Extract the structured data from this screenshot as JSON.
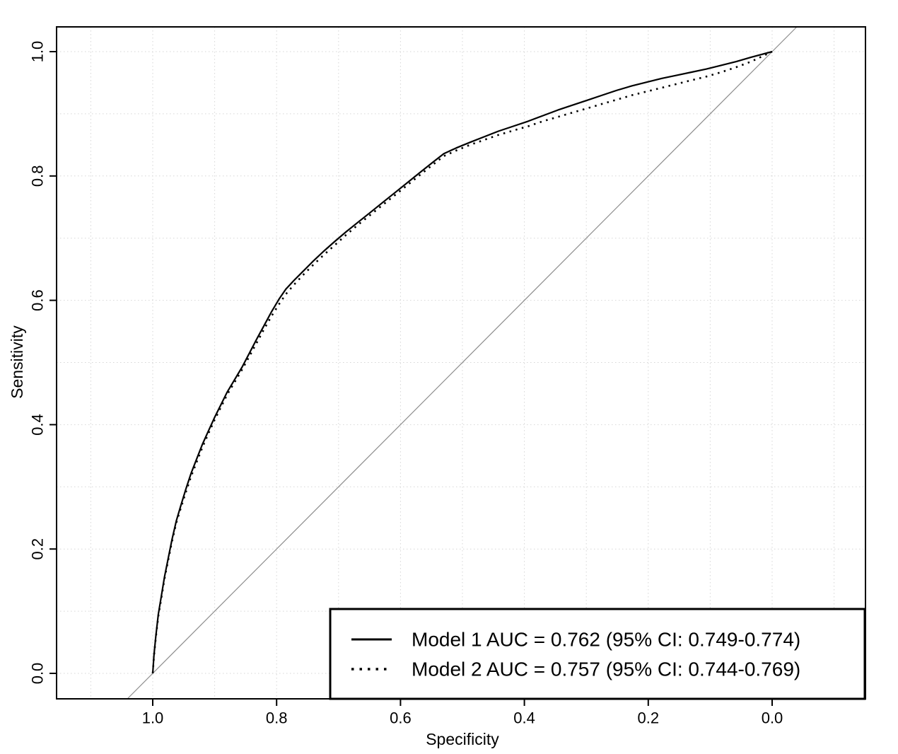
{
  "figure": {
    "background": "#ffffff"
  },
  "chart_data": {
    "type": "line",
    "subtype": "roc-curve",
    "title": "",
    "xlabel": "Specificity",
    "ylabel": "Sensitivity",
    "xlim": [
      1.0,
      0.0
    ],
    "ylim": [
      0.0,
      1.0
    ],
    "x_ticks": [
      "1.0",
      "0.8",
      "0.6",
      "0.4",
      "0.2",
      "0.0"
    ],
    "x_tick_values": [
      1.0,
      0.8,
      0.6,
      0.4,
      0.2,
      0.0
    ],
    "y_ticks": [
      "0.0",
      "0.2",
      "0.4",
      "0.6",
      "0.8",
      "1.0"
    ],
    "y_tick_values": [
      0.0,
      0.2,
      0.4,
      0.6,
      0.8,
      1.0
    ],
    "grid": true,
    "grid_step": 0.1,
    "grid_color": "#d6d6d6",
    "reference_line": {
      "type": "diagonal",
      "from": [
        1,
        0
      ],
      "to": [
        0,
        1
      ],
      "color": "#8c8c8c"
    },
    "legend": {
      "position": "bottom-right",
      "border": true,
      "border_color": "#000000",
      "background": "#ffffff"
    },
    "series": [
      {
        "name": "Model 1",
        "auc": "0.762",
        "ci": "0.749-0.774",
        "legend_label": "Model 1 AUC = 0.762 (95% CI: 0.749-0.774)",
        "line_style": "solid",
        "color": "#000000",
        "points": [
          [
            1.0,
            0.0
          ],
          [
            0.998,
            0.03
          ],
          [
            0.995,
            0.06
          ],
          [
            0.991,
            0.095
          ],
          [
            0.986,
            0.125
          ],
          [
            0.981,
            0.155
          ],
          [
            0.975,
            0.185
          ],
          [
            0.969,
            0.215
          ],
          [
            0.962,
            0.245
          ],
          [
            0.954,
            0.272
          ],
          [
            0.946,
            0.298
          ],
          [
            0.938,
            0.322
          ],
          [
            0.929,
            0.345
          ],
          [
            0.92,
            0.368
          ],
          [
            0.91,
            0.39
          ],
          [
            0.9,
            0.412
          ],
          [
            0.89,
            0.432
          ],
          [
            0.88,
            0.452
          ],
          [
            0.868,
            0.472
          ],
          [
            0.856,
            0.492
          ],
          [
            0.844,
            0.515
          ],
          [
            0.832,
            0.538
          ],
          [
            0.82,
            0.56
          ],
          [
            0.808,
            0.582
          ],
          [
            0.796,
            0.602
          ],
          [
            0.785,
            0.618
          ],
          [
            0.772,
            0.632
          ],
          [
            0.758,
            0.646
          ],
          [
            0.742,
            0.662
          ],
          [
            0.725,
            0.678
          ],
          [
            0.707,
            0.694
          ],
          [
            0.688,
            0.71
          ],
          [
            0.668,
            0.726
          ],
          [
            0.648,
            0.742
          ],
          [
            0.628,
            0.758
          ],
          [
            0.608,
            0.774
          ],
          [
            0.588,
            0.79
          ],
          [
            0.568,
            0.806
          ],
          [
            0.548,
            0.822
          ],
          [
            0.53,
            0.836
          ],
          [
            0.51,
            0.845
          ],
          [
            0.488,
            0.854
          ],
          [
            0.465,
            0.863
          ],
          [
            0.442,
            0.872
          ],
          [
            0.418,
            0.88
          ],
          [
            0.394,
            0.888
          ],
          [
            0.37,
            0.897
          ],
          [
            0.346,
            0.906
          ],
          [
            0.322,
            0.914
          ],
          [
            0.298,
            0.922
          ],
          [
            0.274,
            0.93
          ],
          [
            0.25,
            0.938
          ],
          [
            0.226,
            0.945
          ],
          [
            0.202,
            0.951
          ],
          [
            0.178,
            0.957
          ],
          [
            0.154,
            0.962
          ],
          [
            0.13,
            0.967
          ],
          [
            0.106,
            0.972
          ],
          [
            0.082,
            0.978
          ],
          [
            0.058,
            0.984
          ],
          [
            0.034,
            0.991
          ],
          [
            0.0,
            1.0
          ]
        ]
      },
      {
        "name": "Model 2",
        "auc": "0.757",
        "ci": "0.744-0.769",
        "legend_label": "Model 2 AUC = 0.757 (95% CI: 0.744-0.769)",
        "line_style": "dotted",
        "color": "#000000",
        "points": [
          [
            1.0,
            0.0
          ],
          [
            0.998,
            0.028
          ],
          [
            0.995,
            0.058
          ],
          [
            0.991,
            0.092
          ],
          [
            0.986,
            0.122
          ],
          [
            0.981,
            0.152
          ],
          [
            0.975,
            0.182
          ],
          [
            0.969,
            0.212
          ],
          [
            0.962,
            0.242
          ],
          [
            0.954,
            0.268
          ],
          [
            0.946,
            0.293
          ],
          [
            0.938,
            0.317
          ],
          [
            0.929,
            0.34
          ],
          [
            0.92,
            0.363
          ],
          [
            0.91,
            0.386
          ],
          [
            0.9,
            0.408
          ],
          [
            0.89,
            0.428
          ],
          [
            0.88,
            0.448
          ],
          [
            0.868,
            0.468
          ],
          [
            0.856,
            0.488
          ],
          [
            0.844,
            0.51
          ],
          [
            0.832,
            0.532
          ],
          [
            0.82,
            0.554
          ],
          [
            0.808,
            0.575
          ],
          [
            0.796,
            0.594
          ],
          [
            0.785,
            0.61
          ],
          [
            0.772,
            0.625
          ],
          [
            0.758,
            0.64
          ],
          [
            0.742,
            0.656
          ],
          [
            0.725,
            0.672
          ],
          [
            0.707,
            0.688
          ],
          [
            0.688,
            0.705
          ],
          [
            0.668,
            0.722
          ],
          [
            0.648,
            0.738
          ],
          [
            0.628,
            0.754
          ],
          [
            0.608,
            0.77
          ],
          [
            0.588,
            0.786
          ],
          [
            0.568,
            0.802
          ],
          [
            0.548,
            0.818
          ],
          [
            0.53,
            0.832
          ],
          [
            0.51,
            0.841
          ],
          [
            0.488,
            0.85
          ],
          [
            0.465,
            0.858
          ],
          [
            0.442,
            0.866
          ],
          [
            0.418,
            0.873
          ],
          [
            0.394,
            0.88
          ],
          [
            0.37,
            0.888
          ],
          [
            0.346,
            0.895
          ],
          [
            0.322,
            0.902
          ],
          [
            0.298,
            0.909
          ],
          [
            0.274,
            0.916
          ],
          [
            0.25,
            0.923
          ],
          [
            0.226,
            0.93
          ],
          [
            0.202,
            0.936
          ],
          [
            0.178,
            0.942
          ],
          [
            0.154,
            0.948
          ],
          [
            0.13,
            0.954
          ],
          [
            0.106,
            0.96
          ],
          [
            0.082,
            0.967
          ],
          [
            0.058,
            0.975
          ],
          [
            0.034,
            0.984
          ],
          [
            0.0,
            1.0
          ]
        ]
      }
    ]
  }
}
